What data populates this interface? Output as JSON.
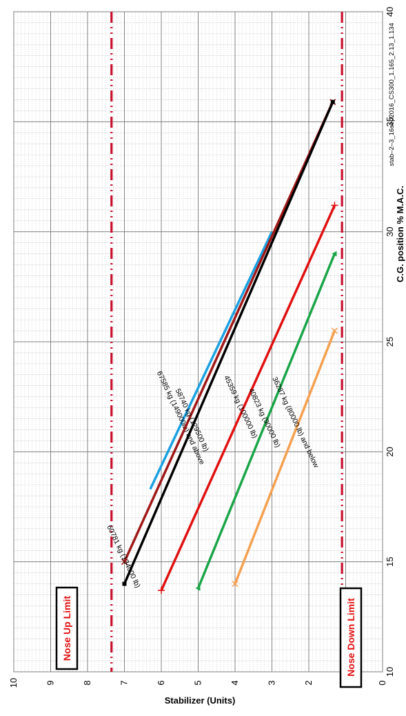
{
  "chart_data": {
    "type": "line",
    "xlabel": "C.G. position % M.A.C.",
    "ylabel": "Stabilizer (Units)",
    "xlim": [
      10,
      40
    ],
    "ylim": [
      0,
      10
    ],
    "x_ticks": [
      "10",
      "15",
      "20",
      "25",
      "30",
      "35",
      "40"
    ],
    "y_ticks": [
      "0",
      "1",
      "2",
      "3",
      "4",
      "5",
      "6",
      "7",
      "8",
      "9",
      "10"
    ],
    "grid": true,
    "orientation": "rotated 90° counter-clockwise",
    "limits": [
      {
        "name": "Nose Up Limit",
        "y": 7.35,
        "color": "#c8102e"
      },
      {
        "name": "Nose Down Limit",
        "y": 1.1,
        "color": "#c8102e"
      }
    ],
    "series": [
      {
        "name": "67585 kg (149000lb) and above",
        "color": "#1ba1e2",
        "points": [
          [
            18.3,
            6.3
          ],
          [
            30.0,
            3.0
          ]
        ]
      },
      {
        "name": "60781 kg (134000 lb)",
        "color": "#a01818",
        "points": [
          [
            15.0,
            7.0
          ],
          [
            35.9,
            1.35
          ]
        ]
      },
      {
        "name": "58740 kg (129500 lb)",
        "color": "#000000",
        "points": [
          [
            14.0,
            7.0
          ],
          [
            35.9,
            1.35
          ]
        ]
      },
      {
        "name": "45359 kg (100000 lb)",
        "color": "#e01010",
        "points": [
          [
            13.7,
            6.0
          ],
          [
            31.2,
            1.3
          ]
        ]
      },
      {
        "name": "40823 kg (90000 lb)",
        "color": "#1aa548",
        "points": [
          [
            13.8,
            5.0
          ],
          [
            29.0,
            1.3
          ]
        ]
      },
      {
        "name": "36287 kg (80000 lb) and below",
        "color": "#f5a050",
        "points": [
          [
            14.0,
            4.0
          ],
          [
            25.5,
            1.3
          ]
        ]
      }
    ]
  },
  "limit_labels": {
    "nose_up": "Nose Up Limit",
    "nose_down": "Nose Down Limit"
  },
  "credit": "stab–2–3_16sep2016_CS300_1.165_2.13_1.134"
}
